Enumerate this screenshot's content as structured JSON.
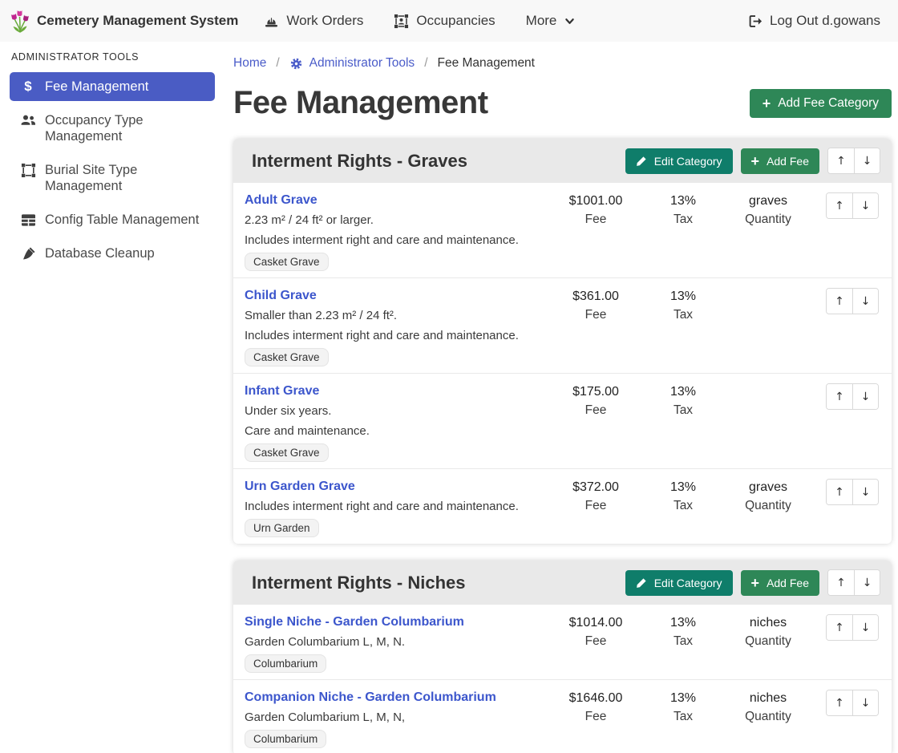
{
  "navbar": {
    "brand": "Cemetery Management System",
    "items": [
      {
        "label": "Work Orders",
        "icon": "hard-hat-icon"
      },
      {
        "label": "Occupancies",
        "icon": "occupancy-frame-icon"
      },
      {
        "label": "More",
        "icon": "chevron-down-icon"
      }
    ],
    "logout_label": "Log Out d.gowans"
  },
  "sidebar": {
    "heading": "ADMINISTRATOR TOOLS",
    "items": [
      {
        "label": "Fee Management",
        "icon": "dollar-icon",
        "active": true
      },
      {
        "label": "Occupancy Type Management",
        "icon": "people-icon",
        "active": false
      },
      {
        "label": "Burial Site Type Management",
        "icon": "site-frame-icon",
        "active": false
      },
      {
        "label": "Config Table Management",
        "icon": "table-icon",
        "active": false
      },
      {
        "label": "Database Cleanup",
        "icon": "broom-icon",
        "active": false
      }
    ]
  },
  "breadcrumb": {
    "items": [
      "Home",
      "Administrator Tools",
      "Fee Management"
    ],
    "separator": "/"
  },
  "page": {
    "title": "Fee Management",
    "add_category_label": "Add Fee Category"
  },
  "category_actions": {
    "edit_label": "Edit Category",
    "add_fee_label": "Add Fee"
  },
  "labels": {
    "fee": "Fee",
    "tax": "Tax",
    "quantity": "Quantity"
  },
  "icons": {
    "up": "↑",
    "down": "↓",
    "plus": "+",
    "dollar": "$"
  },
  "categories": [
    {
      "title": "Interment Rights - Graves",
      "fees": [
        {
          "name": "Adult Grave",
          "descriptions": [
            "2.23 m² / 24 ft² or larger.",
            "Includes interment right and care and maintenance."
          ],
          "badge": "Casket Grave",
          "fee": "$1001.00",
          "tax": "13%",
          "quantity": "graves"
        },
        {
          "name": "Child Grave",
          "descriptions": [
            "Smaller than 2.23 m² / 24 ft².",
            "Includes interment right and care and maintenance."
          ],
          "badge": "Casket Grave",
          "fee": "$361.00",
          "tax": "13%",
          "quantity": ""
        },
        {
          "name": "Infant Grave",
          "descriptions": [
            "Under six years.",
            "Care and maintenance."
          ],
          "badge": "Casket Grave",
          "fee": "$175.00",
          "tax": "13%",
          "quantity": ""
        },
        {
          "name": "Urn Garden Grave",
          "descriptions": [
            "Includes interment right and care and maintenance."
          ],
          "badge": "Urn Garden",
          "fee": "$372.00",
          "tax": "13%",
          "quantity": "graves"
        }
      ]
    },
    {
      "title": "Interment Rights - Niches",
      "fees": [
        {
          "name": "Single Niche - Garden Columbarium",
          "descriptions": [
            "Garden Columbarium L, M, N."
          ],
          "badge": "Columbarium",
          "fee": "$1014.00",
          "tax": "13%",
          "quantity": "niches"
        },
        {
          "name": "Companion Niche - Garden Columbarium",
          "descriptions": [
            "Garden Columbarium L, M, N,"
          ],
          "badge": "Columbarium",
          "fee": "$1646.00",
          "tax": "13%",
          "quantity": "niches"
        }
      ]
    }
  ],
  "colors": {
    "navbar_bg": "#f8f8f8",
    "sidebar_active_bg": "#4a5cc4",
    "breadcrumb_link": "#4a5cc9",
    "fee_link": "#3c56cc",
    "green_button": "#2e8757",
    "teal_button": "#0f7d6a",
    "card_header_bg": "#e9e9e9",
    "badge_bg": "#f3f3f3",
    "logo_pink": "#c0258f",
    "logo_green": "#67a93a"
  }
}
